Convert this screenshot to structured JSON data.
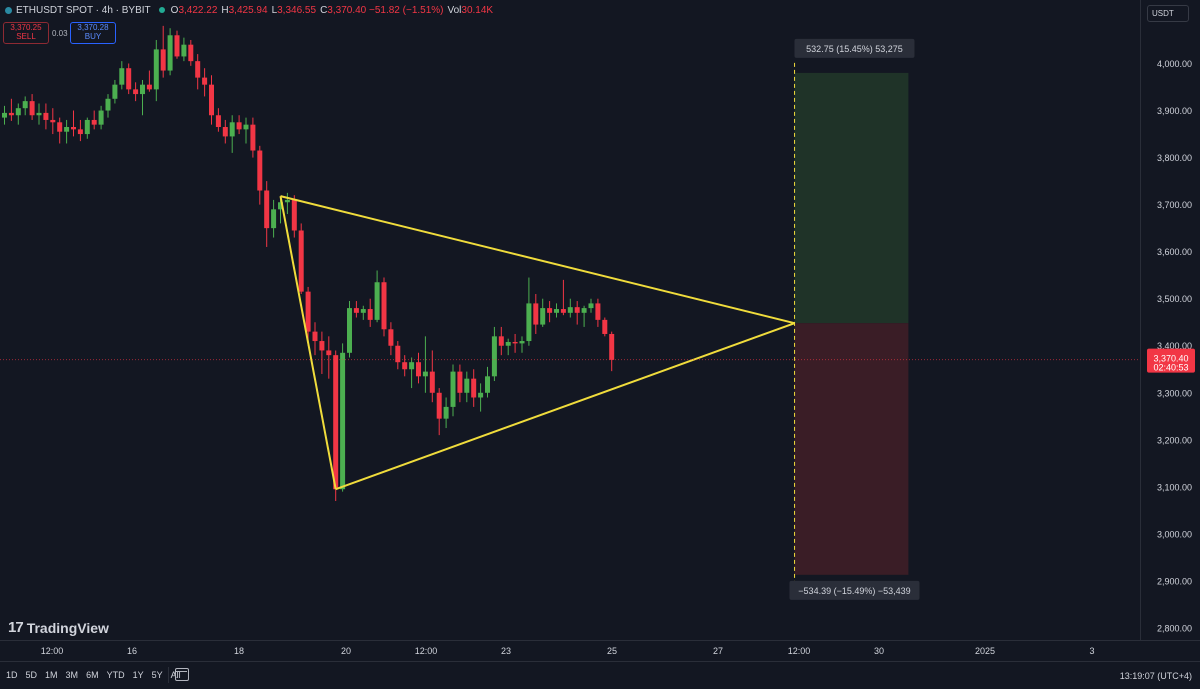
{
  "header": {
    "symbol_line": "ETHUSDT SPOT · 4h · BYBIT",
    "open_k": "O",
    "open_v": "3,422.22",
    "high_k": "H",
    "high_v": "3,425.94",
    "low_k": "L",
    "low_v": "3,346.55",
    "close_k": "C",
    "close_v": "3,370.40 −51.82 (−1.51%)",
    "vol_k": "Vol",
    "vol_v": "30.14K"
  },
  "trade": {
    "sell_price": "3,370.25",
    "sell_label": "SELL",
    "spread": "0.03",
    "buy_price": "3,370.28",
    "buy_label": "BUY"
  },
  "currency": "USDT",
  "brand": {
    "mark": "17",
    "name": "TradingView"
  },
  "ranges": [
    "1D",
    "5D",
    "1M",
    "3M",
    "6M",
    "YTD",
    "1Y",
    "5Y",
    "All"
  ],
  "clock": "13:19:07 (UTC+4)",
  "colors": {
    "up": "#22ab94",
    "up_body": "#4caf50",
    "down": "#f23645",
    "bg": "#131722",
    "grid": "#1e222d",
    "pattern": "#f0dc3c",
    "profit_zone": "#1f3328",
    "loss_zone": "#3a1d26"
  },
  "chart_data": {
    "type": "candlestick",
    "symbol": "ETHUSDT SPOT",
    "interval": "4h",
    "exchange": "BYBIT",
    "y_axis": {
      "ticks": [
        4000,
        3900,
        3800,
        3700,
        3600,
        3500,
        3400,
        3300,
        3200,
        3100,
        3000,
        2900,
        2800
      ],
      "tick_labels": [
        "4,000.00",
        "3,900.00",
        "3,800.00",
        "3,700.00",
        "3,600.00",
        "3,500.00",
        "3,400.00",
        "3,300.00",
        "3,200.00",
        "3,100.00",
        "3,000.00",
        "2,900.00",
        "2,800.00"
      ],
      "range": [
        2780,
        4130
      ]
    },
    "x_axis": {
      "tick_labels": [
        "12:00",
        "16",
        "18",
        "20",
        "12:00",
        "23",
        "25",
        "27",
        "12:00",
        "30",
        "2025",
        "3"
      ]
    },
    "ohlc": [
      [
        3885,
        3910,
        3870,
        3895
      ],
      [
        3895,
        3925,
        3878,
        3890
      ],
      [
        3890,
        3915,
        3870,
        3905
      ],
      [
        3905,
        3930,
        3890,
        3920
      ],
      [
        3920,
        3935,
        3880,
        3890
      ],
      [
        3890,
        3915,
        3870,
        3895
      ],
      [
        3895,
        3915,
        3860,
        3880
      ],
      [
        3880,
        3905,
        3850,
        3875
      ],
      [
        3875,
        3885,
        3830,
        3855
      ],
      [
        3855,
        3880,
        3830,
        3865
      ],
      [
        3865,
        3900,
        3845,
        3860
      ],
      [
        3860,
        3880,
        3835,
        3850
      ],
      [
        3850,
        3885,
        3840,
        3880
      ],
      [
        3880,
        3900,
        3860,
        3870
      ],
      [
        3870,
        3910,
        3860,
        3900
      ],
      [
        3900,
        3935,
        3885,
        3925
      ],
      [
        3925,
        3965,
        3915,
        3955
      ],
      [
        3955,
        4005,
        3945,
        3990
      ],
      [
        3990,
        4000,
        3935,
        3945
      ],
      [
        3945,
        3960,
        3920,
        3935
      ],
      [
        3935,
        3965,
        3890,
        3955
      ],
      [
        3955,
        3985,
        3940,
        3945
      ],
      [
        3945,
        4050,
        3920,
        4030
      ],
      [
        4030,
        4080,
        3970,
        3985
      ],
      [
        3985,
        4075,
        3975,
        4060
      ],
      [
        4060,
        4070,
        4010,
        4015
      ],
      [
        4015,
        4055,
        4005,
        4040
      ],
      [
        4040,
        4050,
        3995,
        4005
      ],
      [
        4005,
        4020,
        3945,
        3970
      ],
      [
        3970,
        3990,
        3930,
        3955
      ],
      [
        3955,
        3975,
        3870,
        3890
      ],
      [
        3890,
        3905,
        3855,
        3865
      ],
      [
        3865,
        3880,
        3830,
        3845
      ],
      [
        3845,
        3890,
        3810,
        3875
      ],
      [
        3875,
        3890,
        3850,
        3860
      ],
      [
        3860,
        3885,
        3830,
        3870
      ],
      [
        3870,
        3885,
        3800,
        3815
      ],
      [
        3815,
        3825,
        3700,
        3730
      ],
      [
        3730,
        3750,
        3610,
        3650
      ],
      [
        3650,
        3710,
        3630,
        3690
      ],
      [
        3690,
        3715,
        3660,
        3705
      ],
      [
        3705,
        3725,
        3680,
        3710
      ],
      [
        3710,
        3720,
        3630,
        3645
      ],
      [
        3645,
        3660,
        3510,
        3515
      ],
      [
        3515,
        3525,
        3400,
        3430
      ],
      [
        3430,
        3450,
        3380,
        3410
      ],
      [
        3410,
        3430,
        3340,
        3390
      ],
      [
        3390,
        3420,
        3330,
        3380
      ],
      [
        3380,
        3390,
        3070,
        3095
      ],
      [
        3095,
        3405,
        3090,
        3385
      ],
      [
        3385,
        3495,
        3375,
        3480
      ],
      [
        3480,
        3495,
        3460,
        3470
      ],
      [
        3470,
        3485,
        3455,
        3478
      ],
      [
        3478,
        3500,
        3440,
        3455
      ],
      [
        3455,
        3560,
        3450,
        3535
      ],
      [
        3535,
        3545,
        3420,
        3435
      ],
      [
        3435,
        3450,
        3380,
        3400
      ],
      [
        3400,
        3410,
        3350,
        3365
      ],
      [
        3365,
        3380,
        3335,
        3350
      ],
      [
        3350,
        3375,
        3310,
        3365
      ],
      [
        3365,
        3385,
        3320,
        3335
      ],
      [
        3335,
        3420,
        3300,
        3345
      ],
      [
        3345,
        3390,
        3280,
        3300
      ],
      [
        3300,
        3310,
        3210,
        3245
      ],
      [
        3245,
        3290,
        3225,
        3270
      ],
      [
        3270,
        3360,
        3250,
        3345
      ],
      [
        3345,
        3360,
        3280,
        3300
      ],
      [
        3300,
        3345,
        3280,
        3330
      ],
      [
        3330,
        3350,
        3270,
        3290
      ],
      [
        3290,
        3320,
        3260,
        3300
      ],
      [
        3300,
        3355,
        3290,
        3335
      ],
      [
        3335,
        3440,
        3325,
        3420
      ],
      [
        3420,
        3440,
        3380,
        3400
      ],
      [
        3400,
        3415,
        3380,
        3408
      ],
      [
        3408,
        3425,
        3385,
        3405
      ],
      [
        3405,
        3420,
        3385,
        3410
      ],
      [
        3410,
        3545,
        3400,
        3490
      ],
      [
        3490,
        3510,
        3425,
        3445
      ],
      [
        3445,
        3500,
        3440,
        3480
      ],
      [
        3480,
        3495,
        3450,
        3470
      ],
      [
        3470,
        3490,
        3460,
        3478
      ],
      [
        3478,
        3540,
        3465,
        3470
      ],
      [
        3470,
        3500,
        3460,
        3482
      ],
      [
        3482,
        3495,
        3445,
        3470
      ],
      [
        3470,
        3485,
        3440,
        3480
      ],
      [
        3480,
        3500,
        3470,
        3490
      ],
      [
        3490,
        3500,
        3440,
        3455
      ],
      [
        3455,
        3460,
        3420,
        3425
      ],
      [
        3425,
        3430,
        3346,
        3370
      ]
    ],
    "annotations": [
      {
        "type": "line",
        "label": "triangle-upper",
        "from": {
          "index": 40,
          "price": 3718
        },
        "to": {
          "index": 114.5,
          "price": 3448
        }
      },
      {
        "type": "line",
        "label": "triangle-lower",
        "from": {
          "index": 48,
          "price": 3095
        },
        "to": {
          "index": 114.5,
          "price": 3448
        }
      },
      {
        "type": "line",
        "label": "triangle-left",
        "from": {
          "index": 40,
          "price": 3718
        },
        "to": {
          "index": 48,
          "price": 3095
        }
      },
      {
        "type": "position",
        "entry": 3448,
        "target": 3980,
        "stop": 2913,
        "start_index": 114.5,
        "end_index": 131
      }
    ],
    "position_labels": {
      "target": "532.75 (15.45%) 53,275",
      "stop": "−534.39 (−15.49%) −53,439"
    },
    "last_price": {
      "price": 3370.4,
      "label": "3,370.40",
      "countdown": "02:40:53"
    },
    "grid": false,
    "legend": "none"
  }
}
